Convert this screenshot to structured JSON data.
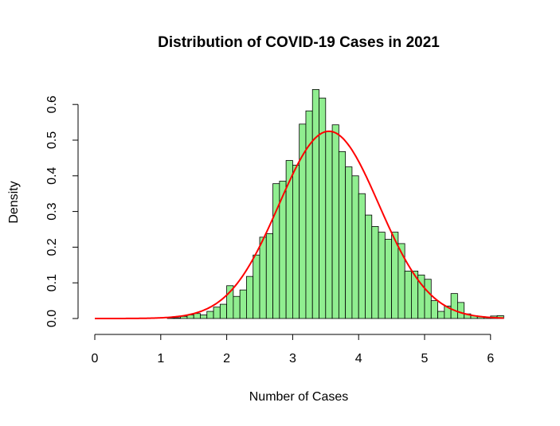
{
  "chart_data": {
    "type": "bar",
    "subtype": "histogram",
    "title": "Distribution of COVID-19 Cases in 2021",
    "xlabel": "Number of Cases",
    "ylabel": "Density",
    "xlim": [
      0,
      6.2
    ],
    "ylim": [
      0,
      0.65
    ],
    "x_ticks": [
      "0",
      "1",
      "2",
      "3",
      "4",
      "5",
      "6"
    ],
    "y_ticks": [
      "0.0",
      "0.1",
      "0.2",
      "0.3",
      "0.4",
      "0.5",
      "0.6"
    ],
    "bin_width": 0.1,
    "bins_start": [
      1.0,
      1.1,
      1.2,
      1.3,
      1.4,
      1.5,
      1.6,
      1.7,
      1.8,
      1.9,
      2.0,
      2.1,
      2.2,
      2.3,
      2.4,
      2.5,
      2.6,
      2.7,
      2.8,
      2.9,
      3.0,
      3.1,
      3.2,
      3.3,
      3.4,
      3.5,
      3.6,
      3.7,
      3.8,
      3.9,
      4.0,
      4.1,
      4.2,
      4.3,
      4.4,
      4.5,
      4.6,
      4.7,
      4.8,
      4.9,
      5.0,
      5.1,
      5.2,
      5.3,
      5.4,
      5.5,
      5.6,
      5.7,
      5.8,
      5.9,
      6.0,
      6.1
    ],
    "density": [
      0.0,
      0.002,
      0.002,
      0.006,
      0.01,
      0.014,
      0.01,
      0.02,
      0.032,
      0.04,
      0.092,
      0.062,
      0.08,
      0.118,
      0.178,
      0.228,
      0.238,
      0.378,
      0.385,
      0.443,
      0.43,
      0.545,
      0.582,
      0.642,
      0.618,
      0.525,
      0.543,
      0.468,
      0.425,
      0.4,
      0.35,
      0.29,
      0.258,
      0.242,
      0.222,
      0.242,
      0.21,
      0.133,
      0.133,
      0.122,
      0.11,
      0.05,
      0.02,
      0.035,
      0.07,
      0.045,
      0.013,
      0.008,
      0.005,
      0.003,
      0.007,
      0.008
    ],
    "bar_color": "#90ee90",
    "bar_border_color": "#000000",
    "curve": {
      "type": "normal_density",
      "mean": 3.55,
      "sd": 0.76,
      "x_range": [
        0,
        6.2
      ],
      "color": "#ff0000"
    }
  }
}
